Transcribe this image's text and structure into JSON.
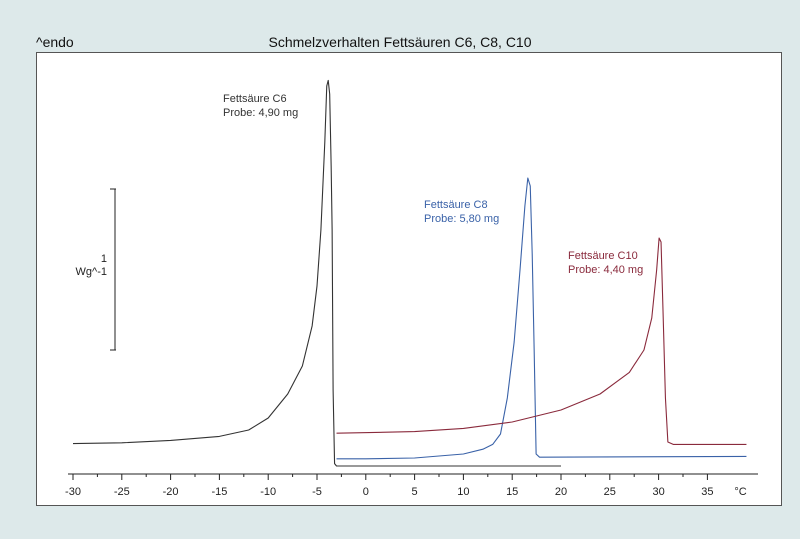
{
  "header": {
    "left": "^endo",
    "title": "Schmelzverhalten Fettsäuren C6, C8, C10"
  },
  "scale_bar": {
    "value": "1",
    "unit": "Wg^-1"
  },
  "colors": {
    "c6": "#333333",
    "c8": "#3a62a8",
    "c10": "#8a2a3c",
    "axis": "#222222"
  },
  "chart_data": {
    "type": "line",
    "title": "Schmelzverhalten Fettsäuren C6, C8, C10",
    "xlabel": "°C",
    "ylabel": "",
    "xlim": [
      -30,
      39
    ],
    "xticks": [
      -30,
      -25,
      -20,
      -15,
      -10,
      -5,
      0,
      5,
      10,
      15,
      20,
      25,
      30,
      35
    ],
    "xunit": "°C",
    "grid": false,
    "scale_bar": {
      "value": 1,
      "unit": "Wg^-1"
    },
    "series": [
      {
        "label_lines": [
          "Fettsäure C6",
          "Probe: 4,90 mg"
        ],
        "color": "#333333",
        "points": [
          [
            -30,
            2.17
          ],
          [
            -25,
            2.16
          ],
          [
            -20,
            2.13
          ],
          [
            -15,
            2.08
          ],
          [
            -12,
            2.0
          ],
          [
            -10,
            1.85
          ],
          [
            -8,
            1.55
          ],
          [
            -6.5,
            1.2
          ],
          [
            -5.5,
            0.7
          ],
          [
            -5,
            0.2
          ],
          [
            -4.6,
            -0.5
          ],
          [
            -4.2,
            -1.6
          ],
          [
            -4.0,
            -2.3
          ],
          [
            -3.85,
            -2.37
          ],
          [
            -3.7,
            -2.2
          ],
          [
            -3.55,
            -1.3
          ],
          [
            -3.45,
            -0.5
          ],
          [
            -3.35,
            1.5
          ],
          [
            -3.2,
            2.42
          ],
          [
            -3.0,
            2.45
          ],
          [
            20,
            2.45
          ]
        ]
      },
      {
        "label_lines": [
          "Fettsäure C8",
          "Probe: 5,80 mg"
        ],
        "color": "#3a62a8",
        "points": [
          [
            -3,
            2.36
          ],
          [
            0,
            2.36
          ],
          [
            5,
            2.35
          ],
          [
            10,
            2.3
          ],
          [
            12,
            2.24
          ],
          [
            13,
            2.18
          ],
          [
            13.8,
            2.05
          ],
          [
            14.5,
            1.6
          ],
          [
            15.2,
            0.9
          ],
          [
            15.8,
            0.0
          ],
          [
            16.3,
            -0.8
          ],
          [
            16.6,
            -1.15
          ],
          [
            16.85,
            -1.05
          ],
          [
            17.05,
            -0.2
          ],
          [
            17.25,
            1.0
          ],
          [
            17.45,
            2.3
          ],
          [
            17.8,
            2.34
          ],
          [
            39,
            2.33
          ]
        ]
      },
      {
        "label_lines": [
          "Fettsäure C10",
          "Probe: 4,40 mg"
        ],
        "color": "#8a2a3c",
        "points": [
          [
            -3,
            2.04
          ],
          [
            5,
            2.02
          ],
          [
            10,
            1.98
          ],
          [
            15,
            1.9
          ],
          [
            20,
            1.75
          ],
          [
            24,
            1.55
          ],
          [
            27,
            1.28
          ],
          [
            28.5,
            1.0
          ],
          [
            29.3,
            0.6
          ],
          [
            29.8,
            0.0
          ],
          [
            30.05,
            -0.4
          ],
          [
            30.25,
            -0.35
          ],
          [
            30.45,
            0.5
          ],
          [
            30.7,
            1.6
          ],
          [
            30.95,
            2.15
          ],
          [
            31.5,
            2.18
          ],
          [
            39,
            2.18
          ]
        ]
      }
    ]
  }
}
